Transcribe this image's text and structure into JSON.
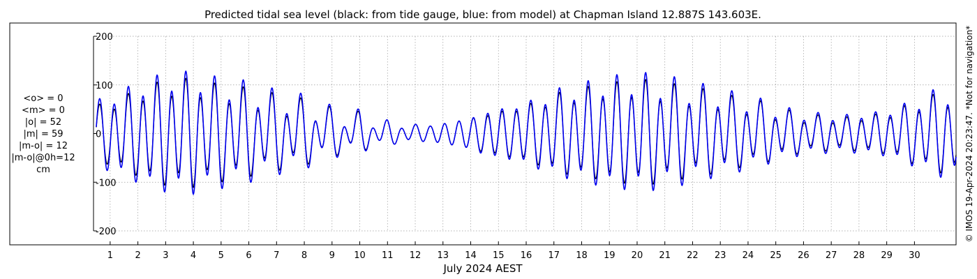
{
  "chart_data": {
    "type": "line",
    "title": "Predicted tidal sea level (black: from tide gauge, blue: from model) at Chapman Island 12.887S 143.603E.",
    "xlabel": "July 2024 AEST",
    "ylabel": "",
    "ylim": [
      -200,
      200
    ],
    "xlim": [
      0.4,
      31.5
    ],
    "yticks": [
      200,
      100,
      0,
      -100,
      -200
    ],
    "ytick_labels": [
      "200",
      "100",
      "0",
      "-100",
      "-200"
    ],
    "xticks": [
      1,
      2,
      3,
      4,
      5,
      6,
      7,
      8,
      9,
      10,
      11,
      12,
      13,
      14,
      15,
      16,
      17,
      18,
      19,
      20,
      21,
      22,
      23,
      24,
      25,
      26,
      27,
      28,
      29,
      30
    ],
    "xtick_labels": [
      "1",
      "2",
      "3",
      "4",
      "5",
      "6",
      "7",
      "8",
      "9",
      "10",
      "11",
      "12",
      "13",
      "14",
      "15",
      "16",
      "17",
      "18",
      "19",
      "20",
      "21",
      "22",
      "23",
      "24",
      "25",
      "26",
      "27",
      "28",
      "29",
      "30"
    ],
    "grid": true,
    "series": [
      {
        "name": "tide gauge",
        "color": "#000000",
        "x": [
          0.5,
          1.0,
          1.5,
          2.0,
          2.5,
          3.0,
          3.5,
          4.0,
          4.5,
          5.0,
          5.5,
          6.0,
          6.5,
          7.0,
          7.5,
          8.0,
          8.5,
          9.0,
          9.5,
          10.0,
          10.5,
          11.0,
          11.5,
          12.0,
          12.5,
          13.0,
          13.5,
          14.0,
          14.5,
          15.0,
          15.5,
          16.0,
          16.5,
          17.0,
          17.5,
          18.0,
          18.5,
          19.0,
          19.5,
          20.0,
          20.5,
          21.0,
          21.5,
          22.0,
          22.5,
          23.0,
          23.5,
          24.0,
          24.5,
          25.0,
          25.5,
          26.0,
          26.5,
          27.0,
          27.5,
          28.0,
          28.5,
          29.0,
          29.5,
          30.0,
          30.5,
          31.0,
          31.5
        ],
        "high_amp": [
          60,
          70,
          80,
          95,
          105,
          115,
          115,
          120,
          105,
          110,
          100,
          100,
          85,
          90,
          70,
          80,
          55,
          60,
          40,
          50,
          25,
          30,
          20,
          20,
          15,
          20,
          25,
          30,
          40,
          45,
          50,
          60,
          70,
          85,
          90,
          100,
          100,
          110,
          110,
          115,
          115,
          110,
          105,
          100,
          95,
          90,
          80,
          75,
          70,
          60,
          50,
          45,
          40,
          40,
          35,
          40,
          40,
          45,
          55,
          70,
          80,
          90,
          90
        ],
        "low_amp": [
          40,
          45,
          55,
          60,
          70,
          75,
          70,
          75,
          65,
          60,
          55,
          50,
          40,
          35,
          30,
          25,
          20,
          15,
          10,
          10,
          10,
          10,
          10,
          10,
          15,
          20,
          25,
          30,
          35,
          40,
          45,
          45,
          50,
          55,
          60,
          60,
          65,
          70,
          70,
          70,
          65,
          60,
          55,
          50,
          45,
          45,
          40,
          35,
          30,
          25,
          25,
          20,
          20,
          20,
          20,
          25,
          25,
          30,
          35,
          40,
          45,
          50,
          50
        ]
      },
      {
        "name": "model",
        "color": "#0000ee",
        "x": [
          0.5,
          1.0,
          1.5,
          2.0,
          2.5,
          3.0,
          3.5,
          4.0,
          4.5,
          5.0,
          5.5,
          6.0,
          6.5,
          7.0,
          7.5,
          8.0,
          8.5,
          9.0,
          9.5,
          10.0,
          10.5,
          11.0,
          11.5,
          12.0,
          12.5,
          13.0,
          13.5,
          14.0,
          14.5,
          15.0,
          15.5,
          16.0,
          16.5,
          17.0,
          17.5,
          18.0,
          18.5,
          19.0,
          19.5,
          20.0,
          20.5,
          21.0,
          21.5,
          22.0,
          22.5,
          23.0,
          23.5,
          24.0,
          24.5,
          25.0,
          25.5,
          26.0,
          26.5,
          27.0,
          27.5,
          28.0,
          28.5,
          29.0,
          29.5,
          30.0,
          30.5,
          31.0,
          31.5
        ],
        "high_amp": [
          70,
          85,
          95,
          110,
          120,
          130,
          130,
          135,
          120,
          125,
          115,
          115,
          95,
          100,
          80,
          90,
          60,
          65,
          45,
          55,
          25,
          30,
          20,
          20,
          15,
          20,
          25,
          30,
          45,
          50,
          55,
          65,
          80,
          95,
          100,
          110,
          115,
          125,
          125,
          130,
          130,
          125,
          120,
          115,
          105,
          100,
          90,
          85,
          75,
          65,
          55,
          50,
          45,
          45,
          40,
          45,
          45,
          50,
          60,
          75,
          90,
          100,
          100
        ],
        "low_amp": [
          50,
          55,
          65,
          70,
          80,
          85,
          80,
          85,
          75,
          70,
          60,
          55,
          45,
          40,
          35,
          30,
          20,
          15,
          10,
          10,
          10,
          10,
          10,
          10,
          15,
          20,
          25,
          30,
          40,
          45,
          50,
          50,
          55,
          60,
          65,
          65,
          70,
          75,
          75,
          75,
          70,
          65,
          60,
          55,
          50,
          50,
          45,
          40,
          35,
          30,
          30,
          25,
          25,
          25,
          25,
          30,
          30,
          35,
          40,
          45,
          50,
          55,
          55
        ]
      }
    ],
    "stats": [
      {
        "label": "<o> = 0"
      },
      {
        "label": "<m> = 0"
      },
      {
        "label": "|o| = 52"
      },
      {
        "label": "|m| = 59"
      },
      {
        "label": "|m-o| = 12"
      },
      {
        "label": "|m-o|@0h=12"
      },
      {
        "label": "cm"
      }
    ],
    "side_note": "© IMOS 19-Apr-2024 20:23:47. *Not for navigation*"
  }
}
